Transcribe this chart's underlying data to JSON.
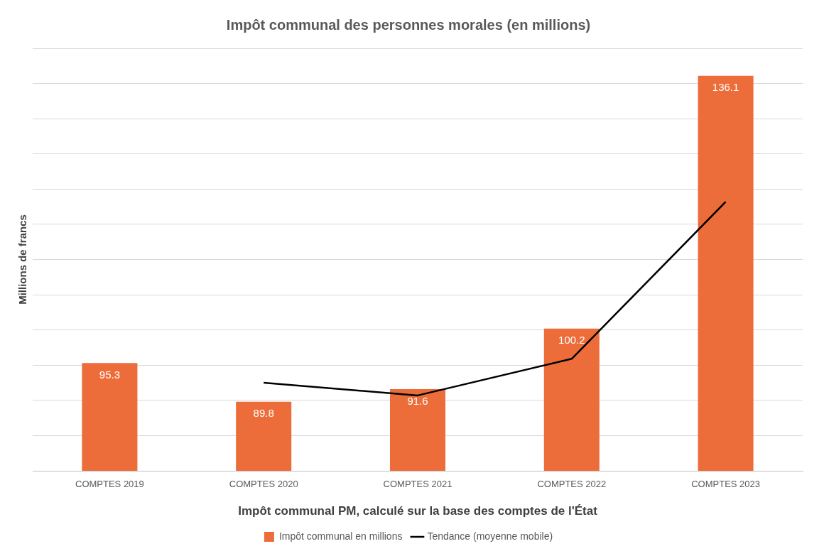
{
  "chart_data": {
    "type": "bar",
    "title": "Impôt communal des personnes morales (en millions)",
    "xlabel": "Impôt communal PM, calculé sur la base des comptes de l'État",
    "ylabel": "Millions de francs",
    "categories": [
      "COMPTES 2019",
      "COMPTES 2020",
      "COMPTES 2021",
      "COMPTES 2022",
      "COMPTES 2023"
    ],
    "series": [
      {
        "name": "Impôt communal en millions",
        "color": "#ed6d3a",
        "values": [
          95.3,
          89.8,
          91.6,
          100.2,
          136.1
        ],
        "value_labels": [
          "95.3",
          "89.8",
          "91.6",
          "100.2",
          "136.1"
        ]
      },
      {
        "name": "Tendance (moyenne mobile)",
        "type": "line",
        "color": "#000000",
        "values": [
          null,
          92.5,
          90.7,
          95.9,
          118.2
        ]
      }
    ],
    "ylim": [
      80,
      140
    ],
    "yticks": [
      {
        "value": 80,
        "label": null
      },
      {
        "value": 85,
        "label": null
      },
      {
        "value": 90,
        "label": null
      },
      {
        "value": 95,
        "label": null
      },
      {
        "value": 100,
        "label": null
      },
      {
        "value": 105,
        "label": null
      },
      {
        "value": 110,
        "label": null
      },
      {
        "value": 115,
        "label": null
      },
      {
        "value": 120,
        "label": null
      },
      {
        "value": 125,
        "label": null
      },
      {
        "value": 130,
        "label": null
      },
      {
        "value": 135,
        "label": null
      },
      {
        "value": 140,
        "label": null
      }
    ],
    "grid": "y",
    "legend": "bottom",
    "tick_labels": "x",
    "marker": "none"
  }
}
